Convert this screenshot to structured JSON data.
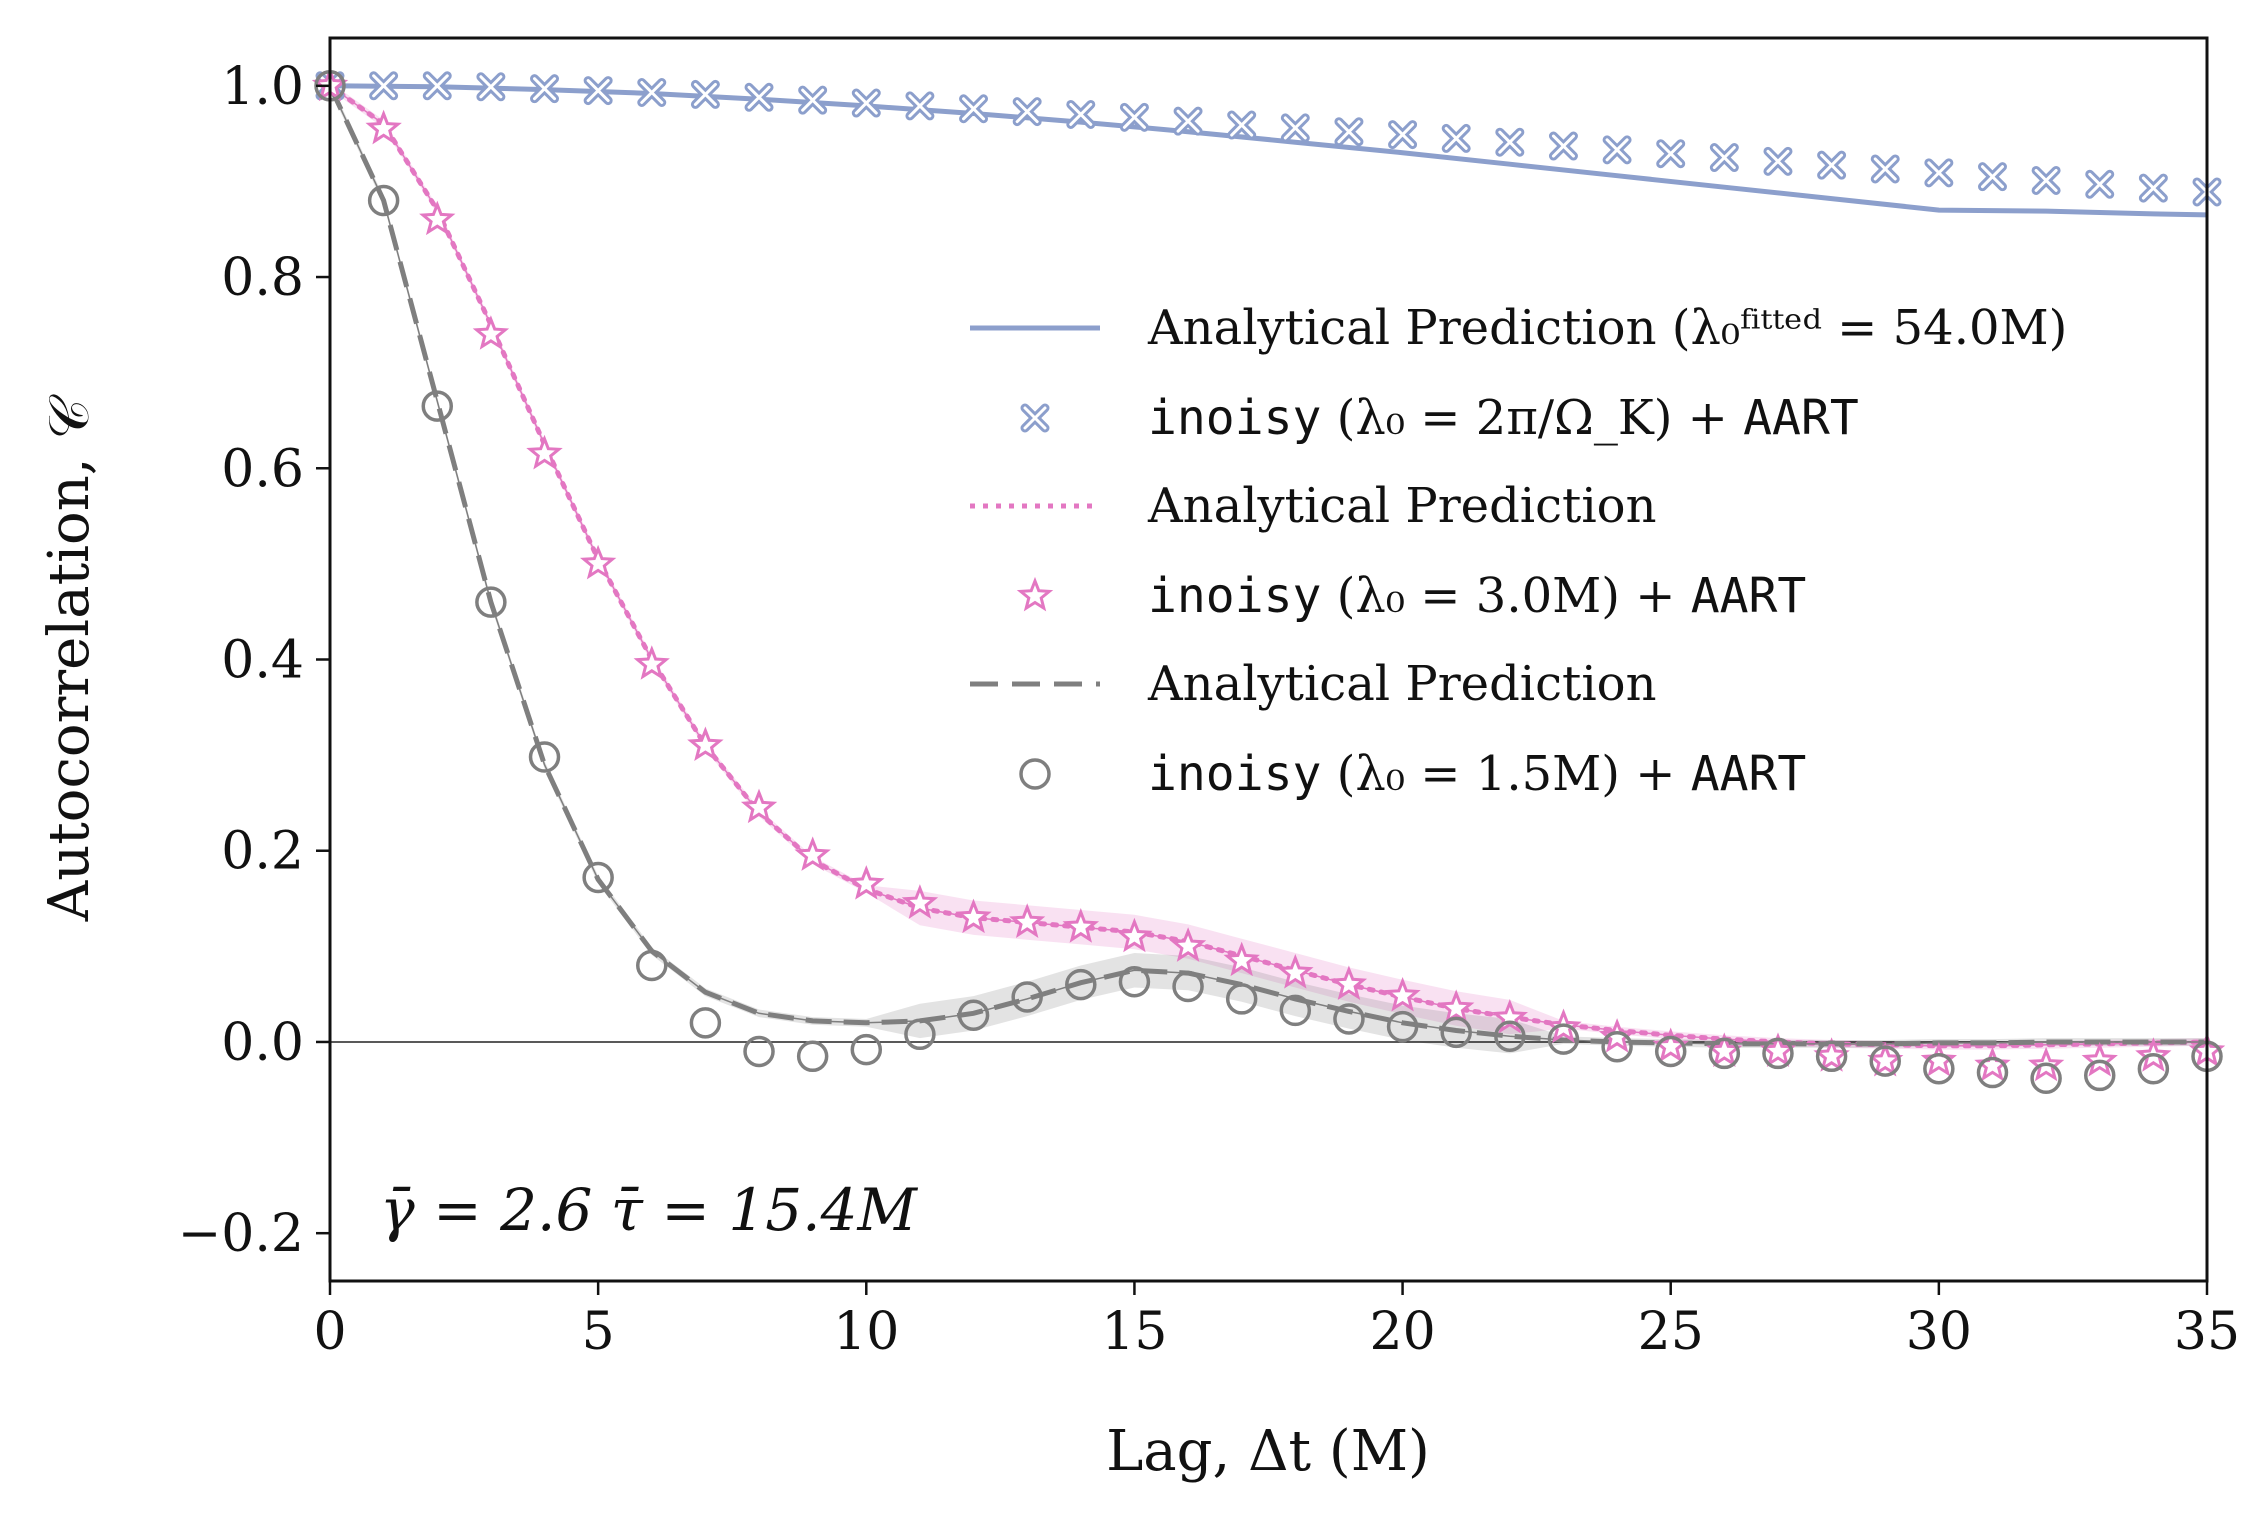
{
  "chart_data": {
    "type": "line",
    "xlabel": "Lag, Δt (M)",
    "ylabel": "Autocorrelation, 𝒞",
    "xlim": [
      0,
      35
    ],
    "ylim": [
      -0.25,
      1.05
    ],
    "xticks": [
      0,
      5,
      10,
      15,
      20,
      25,
      30,
      35
    ],
    "xtick_labels": [
      "0",
      "5",
      "10",
      "15",
      "20",
      "25",
      "30",
      "35"
    ],
    "yticks": [
      -0.2,
      0.0,
      0.2,
      0.4,
      0.6,
      0.8,
      1.0
    ],
    "ytick_labels": [
      "−0.2",
      "0.0",
      "0.2",
      "0.4",
      "0.6",
      "0.8",
      "1.0"
    ],
    "grid": false,
    "zero_line": true,
    "legend_placement": "center-right",
    "annotation": "γ̄ = 2.6   τ̄ = 15.4M",
    "colors": {
      "blue": "#8c9fcc",
      "pink": "#e377c2",
      "gray": "#7f7f7f"
    },
    "series": [
      {
        "name": "Analytical Prediction (λ₀ᶠⁱᵗᵗᵉᵈ = 54.0M)",
        "style": "solid-line",
        "color": "#8c9fcc",
        "x": [
          0,
          2,
          4,
          6,
          8,
          10,
          12,
          14,
          16,
          18,
          20,
          22,
          24,
          26,
          28,
          30,
          32,
          34,
          35
        ],
        "y": [
          1.0,
          0.999,
          0.996,
          0.992,
          0.986,
          0.979,
          0.971,
          0.962,
          0.952,
          0.941,
          0.93,
          0.918,
          0.906,
          0.894,
          0.882,
          0.87,
          0.869,
          0.866,
          0.865
        ]
      },
      {
        "name": "inoisy (λ₀ = 2π/Ω_K) + AART",
        "style": "x-marker",
        "color": "#8c9fcc",
        "x": [
          0,
          1,
          2,
          3,
          4,
          5,
          6,
          7,
          8,
          9,
          10,
          11,
          12,
          13,
          14,
          15,
          16,
          17,
          18,
          19,
          20,
          21,
          22,
          23,
          24,
          25,
          26,
          27,
          28,
          29,
          30,
          31,
          32,
          33,
          34,
          35
        ],
        "y": [
          1.0,
          1.0,
          1.0,
          0.999,
          0.997,
          0.995,
          0.993,
          0.991,
          0.988,
          0.985,
          0.982,
          0.979,
          0.976,
          0.973,
          0.97,
          0.967,
          0.963,
          0.959,
          0.956,
          0.952,
          0.949,
          0.945,
          0.941,
          0.937,
          0.933,
          0.929,
          0.925,
          0.921,
          0.917,
          0.913,
          0.909,
          0.905,
          0.901,
          0.897,
          0.893,
          0.889
        ]
      },
      {
        "name": "Analytical Prediction",
        "style": "dotted-line",
        "color": "#e377c2",
        "x": [
          0,
          1,
          2,
          3,
          4,
          5,
          6,
          7,
          8,
          9,
          10,
          11,
          12,
          13,
          14,
          15,
          16,
          17,
          18,
          19,
          20,
          21,
          22,
          23,
          24,
          25,
          26,
          27,
          28,
          29,
          30,
          31,
          32,
          33,
          34,
          35
        ],
        "y": [
          1.0,
          0.96,
          0.87,
          0.75,
          0.625,
          0.505,
          0.4,
          0.31,
          0.24,
          0.19,
          0.16,
          0.14,
          0.13,
          0.125,
          0.12,
          0.115,
          0.105,
          0.09,
          0.075,
          0.06,
          0.047,
          0.035,
          0.026,
          0.018,
          0.012,
          0.007,
          0.003,
          0.0,
          -0.002,
          -0.003,
          -0.004,
          -0.004,
          -0.003,
          -0.002,
          -0.001,
          0.0
        ]
      },
      {
        "name": "inoisy (λ₀ = 3.0M) + AART",
        "style": "star-marker",
        "color": "#e377c2",
        "x": [
          0,
          1,
          2,
          3,
          4,
          5,
          6,
          7,
          8,
          9,
          10,
          11,
          12,
          13,
          14,
          15,
          16,
          17,
          18,
          19,
          20,
          21,
          22,
          23,
          24,
          25,
          26,
          27,
          28,
          29,
          30,
          31,
          32,
          33,
          34,
          35
        ],
        "y": [
          1.0,
          0.955,
          0.86,
          0.74,
          0.615,
          0.5,
          0.395,
          0.31,
          0.245,
          0.195,
          0.165,
          0.145,
          0.13,
          0.125,
          0.12,
          0.11,
          0.1,
          0.085,
          0.072,
          0.06,
          0.048,
          0.035,
          0.025,
          0.015,
          0.005,
          -0.005,
          -0.01,
          -0.01,
          -0.015,
          -0.02,
          -0.02,
          -0.025,
          -0.025,
          -0.02,
          -0.015,
          -0.01
        ]
      },
      {
        "name": "Analytical Prediction",
        "style": "dashed-line",
        "color": "#7f7f7f",
        "x": [
          0,
          1,
          2,
          3,
          4,
          5,
          6,
          7,
          8,
          9,
          10,
          11,
          12,
          13,
          14,
          15,
          16,
          17,
          18,
          19,
          20,
          21,
          22,
          23,
          24,
          25,
          26,
          27,
          28,
          29,
          30,
          31,
          32,
          33,
          34,
          35
        ],
        "y": [
          1.0,
          0.88,
          0.67,
          0.46,
          0.29,
          0.17,
          0.095,
          0.052,
          0.03,
          0.022,
          0.02,
          0.022,
          0.03,
          0.045,
          0.062,
          0.075,
          0.072,
          0.06,
          0.045,
          0.032,
          0.02,
          0.012,
          0.006,
          0.002,
          0.0,
          -0.001,
          -0.002,
          -0.002,
          -0.002,
          -0.002,
          -0.001,
          -0.001,
          0.0,
          0.0,
          0.0,
          0.0
        ]
      },
      {
        "name": "inoisy (λ₀ = 1.5M) + AART",
        "style": "circle-marker",
        "color": "#7f7f7f",
        "x": [
          0,
          1,
          2,
          3,
          4,
          5,
          6,
          7,
          8,
          9,
          10,
          11,
          12,
          13,
          14,
          15,
          16,
          17,
          18,
          19,
          20,
          21,
          22,
          23,
          24,
          25,
          26,
          27,
          28,
          29,
          30,
          31,
          32,
          33,
          34,
          35
        ],
        "y": [
          1.0,
          0.88,
          0.665,
          0.46,
          0.298,
          0.172,
          0.08,
          0.02,
          -0.01,
          -0.015,
          -0.008,
          0.008,
          0.028,
          0.047,
          0.06,
          0.063,
          0.058,
          0.045,
          0.033,
          0.024,
          0.016,
          0.01,
          0.006,
          0.003,
          -0.005,
          -0.01,
          -0.012,
          -0.012,
          -0.015,
          -0.02,
          -0.028,
          -0.032,
          -0.038,
          -0.035,
          -0.028,
          -0.015
        ]
      }
    ]
  },
  "legend": {
    "l1": "Analytical Prediction (λ₀ᶠⁱᵗᵗᵉᵈ = 54.0M)",
    "l2_mono": "inoisy",
    "l2_rest": " (λ₀ = 2π/Ω_K) + ",
    "l2_mono2": "AART",
    "l3": "Analytical Prediction",
    "l4_mono": "inoisy",
    "l4_rest": " (λ₀ = 3.0M) + ",
    "l4_mono2": "AART",
    "l5": "Analytical Prediction",
    "l6_mono": "inoisy",
    "l6_rest": " (λ₀ = 1.5M) + ",
    "l6_mono2": "AART"
  }
}
